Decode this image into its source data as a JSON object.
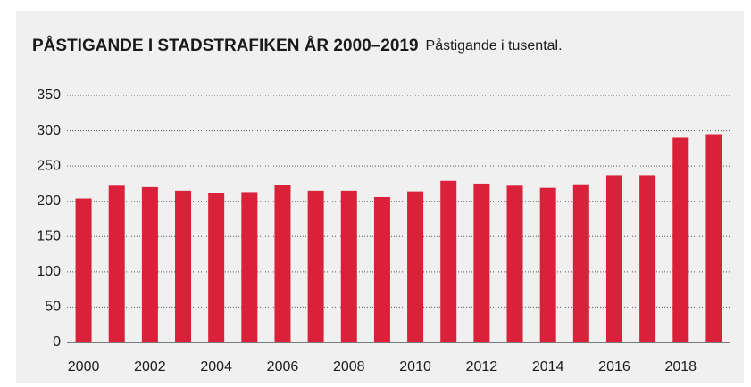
{
  "chart_data": {
    "type": "bar",
    "title": "PÅSTIGANDE I STADSTRAFIKEN ÅR 2000–2019",
    "subtitle": "Påstigande i tusental.",
    "categories": [
      "2000",
      null,
      "2002",
      null,
      "2004",
      null,
      "2006",
      null,
      "2008",
      null,
      "2010",
      null,
      "2012",
      null,
      "2014",
      null,
      "2016",
      null,
      "2018",
      null
    ],
    "values": [
      204,
      222,
      220,
      215,
      211,
      213,
      223,
      215,
      215,
      206,
      214,
      229,
      225,
      222,
      219,
      224,
      237,
      237,
      290,
      295
    ],
    "color": "#d9213a",
    "ylim": [
      0,
      350
    ],
    "yticks": [
      0,
      50,
      100,
      150,
      200,
      250,
      300,
      350
    ],
    "grid": true
  }
}
